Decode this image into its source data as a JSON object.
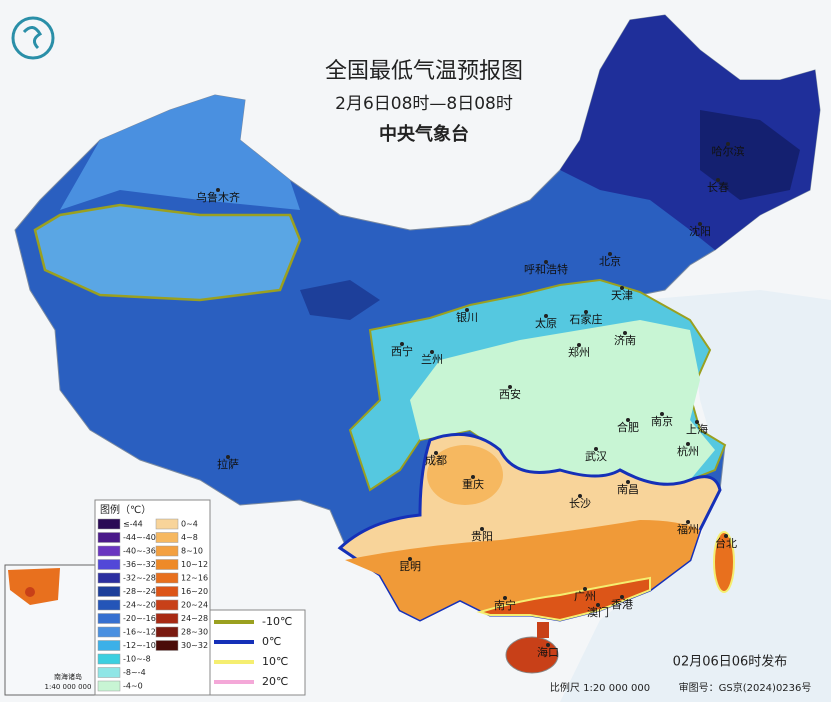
{
  "header": {
    "title": "全国最低气温预报图",
    "subtitle": "2月6日08时—8日08时",
    "issuer": "中央气象台"
  },
  "cities": [
    "乌鲁木齐",
    "哈尔滨",
    "长春",
    "沈阳",
    "呼和浩特",
    "北京",
    "天津",
    "石家庄",
    "太原",
    "银川",
    "济南",
    "西宁",
    "兰州",
    "西安",
    "郑州",
    "合肥",
    "南京",
    "上海",
    "杭州",
    "武汉",
    "成都",
    "重庆",
    "拉萨",
    "长沙",
    "南昌",
    "贵阳",
    "福州",
    "台北",
    "昆明",
    "南宁",
    "广州",
    "澳门",
    "香港",
    "海口"
  ],
  "legend": {
    "title": "图例（℃）",
    "items": [
      {
        "label": "≤-44",
        "color": "#2a0a55"
      },
      {
        "label": "-44~-40",
        "color": "#4b1a8a"
      },
      {
        "label": "-40~-36",
        "color": "#6a35c0"
      },
      {
        "label": "-36~-32",
        "color": "#5248d8"
      },
      {
        "label": "-32~-28",
        "color": "#2c2fa0"
      },
      {
        "label": "-28~-24",
        "color": "#1d3f9a"
      },
      {
        "label": "-24~-20",
        "color": "#2455b8"
      },
      {
        "label": "-20~-16",
        "color": "#3670d0"
      },
      {
        "label": "-16~-12",
        "color": "#4a90e0"
      },
      {
        "label": "-12~-10",
        "color": "#3cb0e8"
      },
      {
        "label": "-10~-8",
        "color": "#3ccfe0"
      },
      {
        "label": "-8~-4",
        "color": "#8fe6e6"
      },
      {
        "label": "-4~0",
        "color": "#c8f5d4"
      },
      {
        "label": "0~4",
        "color": "#f8d49a"
      },
      {
        "label": "4~8",
        "color": "#f6b860"
      },
      {
        "label": "8~10",
        "color": "#f3a040"
      },
      {
        "label": "10~12",
        "color": "#ee8a28"
      },
      {
        "label": "12~16",
        "color": "#e8701e"
      },
      {
        "label": "16~20",
        "color": "#dc5518"
      },
      {
        "label": "20~24",
        "color": "#c84018"
      },
      {
        "label": "24~28",
        "color": "#a82a14"
      },
      {
        "label": "28~30",
        "color": "#7a1a10"
      },
      {
        "label": "30~32",
        "color": "#4a0c08"
      }
    ],
    "contours": [
      {
        "label": "-10℃",
        "color": "#9aa020"
      },
      {
        "label": "0℃",
        "color": "#1530b8"
      },
      {
        "label": "10℃",
        "color": "#f5ee70"
      },
      {
        "label": "20℃",
        "color": "#f4a8d8"
      }
    ]
  },
  "inset": {
    "name": "南海诸岛",
    "scale": "1:40 000 000"
  },
  "footer": {
    "issued": "02月06日06时发布",
    "scale": "比例尺  1:20 000 000",
    "approval": "审图号：GS京(2024)0236号"
  }
}
